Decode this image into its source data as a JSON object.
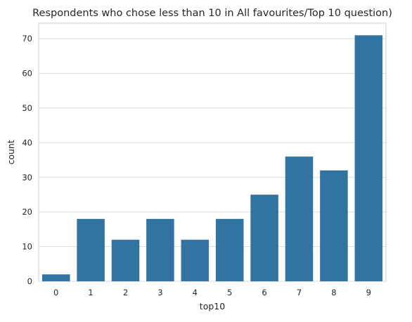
{
  "chart_data": {
    "type": "bar",
    "title": "Respondents who chose less than 10 in All favourites/Top 10 question)",
    "xlabel": "top10",
    "ylabel": "count",
    "categories": [
      "0",
      "1",
      "2",
      "3",
      "4",
      "5",
      "6",
      "7",
      "8",
      "9"
    ],
    "values": [
      2,
      18,
      12,
      18,
      12,
      18,
      25,
      36,
      32,
      71
    ],
    "ylim": [
      0,
      74.5
    ],
    "yticks": [
      "0",
      "10",
      "20",
      "30",
      "40",
      "50",
      "60",
      "70"
    ],
    "grid": true,
    "bar_color": "#3274a1"
  }
}
